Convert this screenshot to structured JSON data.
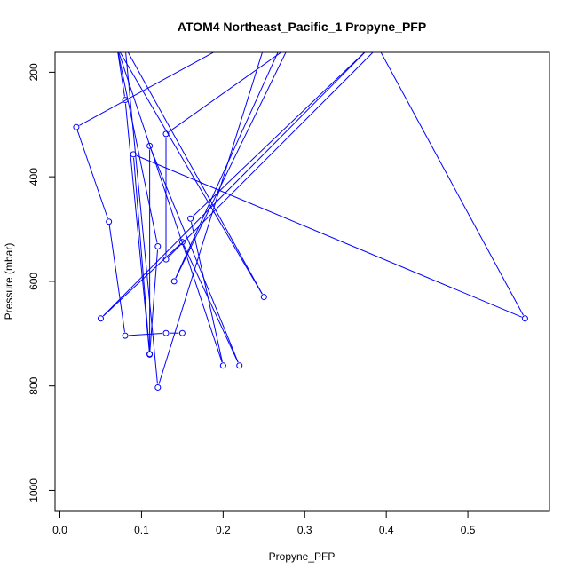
{
  "chart_data": {
    "type": "line",
    "title": "ATOM4 Northeast_Pacific_1 Propyne_PFP",
    "xlabel": "Propyne_PFP",
    "ylabel": "Pressure (mbar)",
    "xlim": [
      -0.006,
      0.6
    ],
    "ylim": [
      1040,
      162
    ],
    "y_reversed": true,
    "x_ticks": [
      0.0,
      0.1,
      0.2,
      0.3,
      0.4,
      0.5
    ],
    "x_tick_labels": [
      "0.0",
      "0.1",
      "0.2",
      "0.3",
      "0.4",
      "0.5"
    ],
    "y_ticks": [
      200,
      400,
      600,
      800,
      1000
    ],
    "y_tick_labels": [
      "200",
      "400",
      "600",
      "800",
      "1000"
    ],
    "grid": false,
    "legend": "none",
    "series_color": "#0000ff",
    "marker": "open-circle",
    "points": [
      {
        "x": 0.15,
        "y": 699
      },
      {
        "x": 0.13,
        "y": 699
      },
      {
        "x": 0.08,
        "y": 704
      },
      {
        "x": 0.06,
        "y": 486
      },
      {
        "x": 0.02,
        "y": 305
      },
      {
        "x": 0.2,
        "y": 152
      },
      {
        "x": 0.07,
        "y": 152
      },
      {
        "x": 0.12,
        "y": 533
      },
      {
        "x": 0.11,
        "y": 739
      },
      {
        "x": 0.09,
        "y": 357
      },
      {
        "x": 0.57,
        "y": 671
      },
      {
        "x": 0.39,
        "y": 152
      },
      {
        "x": 0.13,
        "y": 558
      },
      {
        "x": 0.13,
        "y": 318
      },
      {
        "x": 0.28,
        "y": 152
      },
      {
        "x": 0.14,
        "y": 600
      },
      {
        "x": 0.27,
        "y": 152
      },
      {
        "x": 0.07,
        "y": 152
      },
      {
        "x": 0.08,
        "y": 253
      },
      {
        "x": 0.11,
        "y": 740
      },
      {
        "x": 0.11,
        "y": 341
      },
      {
        "x": 0.22,
        "y": 761
      },
      {
        "x": 0.15,
        "y": 525
      },
      {
        "x": 0.05,
        "y": 671
      },
      {
        "x": 0.38,
        "y": 152
      },
      {
        "x": 0.16,
        "y": 480
      },
      {
        "x": 0.2,
        "y": 761
      },
      {
        "x": 0.07,
        "y": 152
      },
      {
        "x": 0.25,
        "y": 630
      },
      {
        "x": 0.08,
        "y": 152
      },
      {
        "x": 0.12,
        "y": 803
      },
      {
        "x": 0.25,
        "y": 152
      }
    ]
  }
}
